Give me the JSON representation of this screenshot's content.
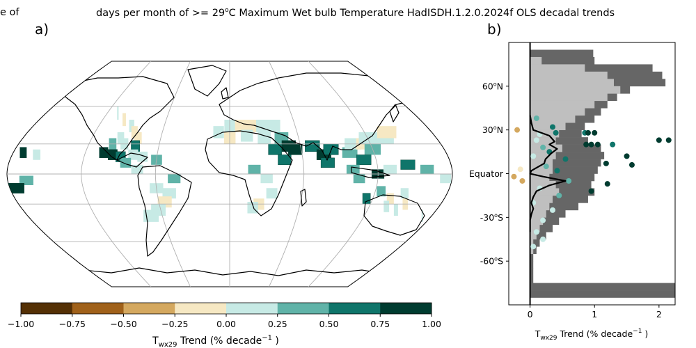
{
  "titles": {
    "left_fragment": "e of",
    "main_prefix": "days per month of >= 29",
    "main_degree": "o",
    "main_suffix": "C Maximum Wet bulb Temperature HadISDH.1.2.0.2024f OLS decadal trends",
    "panel_a": "a)",
    "panel_b": "b)"
  },
  "colorbar": {
    "label_main": "T",
    "label_sub": "wx29",
    "label_rest": " Trend (% decade",
    "label_sup": "−1",
    "label_end": " )",
    "ticks": [
      "−1.00",
      "−0.75",
      "−0.50",
      "−0.25",
      "0.00",
      "0.25",
      "0.50",
      "0.75",
      "1.00"
    ],
    "colors": [
      "#543005",
      "#a0611a",
      "#d4a85f",
      "#f6e8c3",
      "#c7eae5",
      "#60b3a8",
      "#0f756a",
      "#003c30"
    ]
  },
  "colors": {
    "hist_dark": "#666666",
    "hist_light": "#bfbfbf",
    "trend_line": "#000000"
  },
  "chart_data": [
    {
      "type": "heatmap",
      "name": "map",
      "projection": "Robinson",
      "gridlines": true,
      "colormap": "BrBG",
      "color_range": [
        -1.0,
        1.0
      ],
      "color_levels": [
        -1.0,
        -0.75,
        -0.5,
        -0.25,
        0.0,
        0.25,
        0.5,
        0.75,
        1.0
      ],
      "cells": [
        {
          "lon": -172,
          "lat": 22,
          "v": 0.9
        },
        {
          "lon": -160,
          "lat": 20,
          "v": 0.2
        },
        {
          "lon": -165,
          "lat": -7,
          "v": 0.3
        },
        {
          "lon": -110,
          "lat": 55,
          "v": 0.1
        },
        {
          "lon": -100,
          "lat": 50,
          "v": -0.1
        },
        {
          "lon": -90,
          "lat": 45,
          "v": 0.2
        },
        {
          "lon": -85,
          "lat": 40,
          "v": -0.2
        },
        {
          "lon": -95,
          "lat": 35,
          "v": 0.1
        },
        {
          "lon": -80,
          "lat": 35,
          "v": -0.1
        },
        {
          "lon": -100,
          "lat": 30,
          "v": 0.3
        },
        {
          "lon": -90,
          "lat": 30,
          "v": 0.2
        },
        {
          "lon": -80,
          "lat": 28,
          "v": 0.6
        },
        {
          "lon": -105,
          "lat": 22,
          "v": 0.8
        },
        {
          "lon": -97,
          "lat": 20,
          "v": 0.9
        },
        {
          "lon": -90,
          "lat": 18,
          "v": 0.5
        },
        {
          "lon": -80,
          "lat": 20,
          "v": 0.1
        },
        {
          "lon": -72,
          "lat": 18,
          "v": 0.2
        },
        {
          "lon": -85,
          "lat": 12,
          "v": 0.3
        },
        {
          "lon": -60,
          "lat": 15,
          "v": 0.4
        },
        {
          "lon": -75,
          "lat": 5,
          "v": 0.2
        },
        {
          "lon": -45,
          "lat": -5,
          "v": 0.3
        },
        {
          "lon": -60,
          "lat": -15,
          "v": 0.1
        },
        {
          "lon": -50,
          "lat": -20,
          "v": 0.2
        },
        {
          "lon": -55,
          "lat": -28,
          "v": -0.1
        },
        {
          "lon": -62,
          "lat": -35,
          "v": 0.2
        },
        {
          "lon": -70,
          "lat": -40,
          "v": 0.1
        },
        {
          "lon": -10,
          "lat": 40,
          "v": 0.1
        },
        {
          "lon": 0,
          "lat": 45,
          "v": 0.2
        },
        {
          "lon": 10,
          "lat": 45,
          "v": -0.1
        },
        {
          "lon": 20,
          "lat": 45,
          "v": -0.2
        },
        {
          "lon": 30,
          "lat": 45,
          "v": 0.1
        },
        {
          "lon": 40,
          "lat": 45,
          "v": 0.2
        },
        {
          "lon": 0,
          "lat": 35,
          "v": -0.1
        },
        {
          "lon": 15,
          "lat": 37,
          "v": 0.1
        },
        {
          "lon": 30,
          "lat": 35,
          "v": 0.2
        },
        {
          "lon": 45,
          "lat": 35,
          "v": 0.3
        },
        {
          "lon": 50,
          "lat": 28,
          "v": 0.8
        },
        {
          "lon": 55,
          "lat": 25,
          "v": 0.9
        },
        {
          "lon": 38,
          "lat": 25,
          "v": 0.5
        },
        {
          "lon": 45,
          "lat": 15,
          "v": 0.7
        },
        {
          "lon": 70,
          "lat": 28,
          "v": 0.6
        },
        {
          "lon": 78,
          "lat": 20,
          "v": 0.9
        },
        {
          "lon": 80,
          "lat": 12,
          "v": 0.7
        },
        {
          "lon": 85,
          "lat": 25,
          "v": 0.5
        },
        {
          "lon": 100,
          "lat": 22,
          "v": 0.3
        },
        {
          "lon": 105,
          "lat": 30,
          "v": 0.2
        },
        {
          "lon": 115,
          "lat": 30,
          "v": -0.1
        },
        {
          "lon": 120,
          "lat": 35,
          "v": 0.1
        },
        {
          "lon": 120,
          "lat": 25,
          "v": 0.4
        },
        {
          "lon": 110,
          "lat": 15,
          "v": 0.5
        },
        {
          "lon": 100,
          "lat": 5,
          "v": 0.3
        },
        {
          "lon": 105,
          "lat": -5,
          "v": 0.4
        },
        {
          "lon": 120,
          "lat": 0,
          "v": 0.9
        },
        {
          "lon": 130,
          "lat": 5,
          "v": 0.2
        },
        {
          "lon": 125,
          "lat": 35,
          "v": 0.2
        },
        {
          "lon": 135,
          "lat": 35,
          "v": 0.1
        },
        {
          "lon": 140,
          "lat": 40,
          "v": -0.1
        },
        {
          "lon": 145,
          "lat": 10,
          "v": 0.6
        },
        {
          "lon": 160,
          "lat": 5,
          "v": 0.3
        },
        {
          "lon": 175,
          "lat": -5,
          "v": 0.2
        },
        {
          "lon": -175,
          "lat": -15,
          "v": 0.9
        },
        {
          "lon": 20,
          "lat": 5,
          "v": 0.3
        },
        {
          "lon": 30,
          "lat": -5,
          "v": 0.2
        },
        {
          "lon": 35,
          "lat": -20,
          "v": 0.1
        },
        {
          "lon": 25,
          "lat": -30,
          "v": -0.1
        },
        {
          "lon": 20,
          "lat": -33,
          "v": 0.2
        },
        {
          "lon": 115,
          "lat": -25,
          "v": 0.5
        },
        {
          "lon": 125,
          "lat": -18,
          "v": 0.3
        },
        {
          "lon": 135,
          "lat": -25,
          "v": -0.2
        },
        {
          "lon": 145,
          "lat": -20,
          "v": 0.2
        },
        {
          "lon": 150,
          "lat": -30,
          "v": -0.1
        },
        {
          "lon": 145,
          "lat": -35,
          "v": 0.1
        },
        {
          "lon": 135,
          "lat": -32,
          "v": 0.1
        },
        {
          "lon": 172,
          "lat": -40,
          "v": 0.1
        }
      ]
    },
    {
      "type": "bar",
      "name": "zonal histogram",
      "orientation": "horizontal",
      "xlabel": "T",
      "xlabel_sub": "wx29",
      "xlabel_rest": " Trend (% decade",
      "xlabel_sup": "−1",
      "xlabel_end": " )",
      "xlim": [
        -0.33,
        2.25
      ],
      "ylim": [
        -90,
        90
      ],
      "xticks": [
        0,
        1,
        2
      ],
      "yticks": [
        {
          "value": 60,
          "label": "60",
          "sup": "o",
          "hem": "N"
        },
        {
          "value": 30,
          "label": "30",
          "sup": "o",
          "hem": "N"
        },
        {
          "value": 0,
          "label": "Equator",
          "sup": "",
          "hem": ""
        },
        {
          "value": -30,
          "label": "-30",
          "sup": "o",
          "hem": "S"
        },
        {
          "value": -60,
          "label": "-60",
          "sup": "o",
          "hem": "S"
        }
      ],
      "lat_bands": [
        82.5,
        77.5,
        72.5,
        67.5,
        62.5,
        57.5,
        52.5,
        47.5,
        42.5,
        37.5,
        32.5,
        27.5,
        22.5,
        17.5,
        12.5,
        7.5,
        2.5,
        -2.5,
        -7.5,
        -12.5,
        -17.5,
        -22.5,
        -27.5,
        -32.5,
        -37.5,
        -42.5,
        -47.5,
        -52.5,
        -57.5,
        -62.5,
        -67.5,
        -72.5,
        -77.5,
        -82.5
      ],
      "series": [
        {
          "name": "",
          "style": "dark",
          "values": [
            0.98,
            1.0,
            1.9,
            2.05,
            2.1,
            1.55,
            1.35,
            1.2,
            1.1,
            1.0,
            0.85,
            0.8,
            0.9,
            1.1,
            1.15,
            1.1,
            1.05,
            1.0,
            0.95,
            1.0,
            0.9,
            0.75,
            0.55,
            0.45,
            0.35,
            0.25,
            0.15,
            0.1,
            0.05,
            0.05,
            0.05,
            0.05,
            2.25,
            2.25
          ]
        },
        {
          "name": "",
          "style": "light",
          "values": [
            0.0,
            0.18,
            0.85,
            1.2,
            1.3,
            1.4,
            1.2,
            1.0,
            0.85,
            0.7,
            0.55,
            0.45,
            0.4,
            0.5,
            0.4,
            0.35,
            0.35,
            0.3,
            0.4,
            0.45,
            0.35,
            0.3,
            0.25,
            0.2,
            0.15,
            0.1,
            0.05,
            0.05,
            0.0,
            0.0,
            0.0,
            0.0,
            0.0,
            0.0
          ]
        }
      ],
      "trend_line": {
        "lat": [
          40,
          35,
          30,
          26,
          22,
          20,
          17,
          14,
          10,
          7,
          4,
          2,
          0,
          -2,
          -5,
          -8,
          -12,
          -16,
          -20,
          -24,
          -28,
          -32,
          -36,
          -40
        ],
        "x": [
          0.0,
          0.02,
          0.05,
          0.3,
          0.38,
          0.3,
          0.42,
          0.33,
          0.24,
          0.22,
          0.1,
          0.02,
          0.0,
          0.2,
          0.55,
          0.3,
          0.1,
          0.05,
          0.02,
          0.05,
          0.02,
          0.0,
          0.0,
          0.0
        ]
      },
      "scatter": [
        {
          "x": -0.2,
          "lat": 30,
          "v": -0.3
        },
        {
          "x": -0.15,
          "lat": 3,
          "v": -0.2
        },
        {
          "x": -0.12,
          "lat": -5,
          "v": -0.3
        },
        {
          "x": -0.25,
          "lat": -2,
          "v": -0.3
        },
        {
          "x": 0.1,
          "lat": 38,
          "v": 0.3
        },
        {
          "x": 0.15,
          "lat": 27,
          "v": 0.2
        },
        {
          "x": 0.1,
          "lat": 23,
          "v": 0.2
        },
        {
          "x": 0.2,
          "lat": 18,
          "v": 0.3
        },
        {
          "x": 0.05,
          "lat": 12,
          "v": 0.2
        },
        {
          "x": 0.25,
          "lat": 5,
          "v": 0.3
        },
        {
          "x": 0.15,
          "lat": -10,
          "v": 0.2
        },
        {
          "x": 0.05,
          "lat": -20,
          "v": 0.1
        },
        {
          "x": 0.35,
          "lat": 32,
          "v": 0.6
        },
        {
          "x": 0.4,
          "lat": 28,
          "v": 0.5
        },
        {
          "x": 0.3,
          "lat": 15,
          "v": 0.6
        },
        {
          "x": 0.42,
          "lat": 2,
          "v": 0.5
        },
        {
          "x": 0.55,
          "lat": 10,
          "v": 0.6
        },
        {
          "x": 0.85,
          "lat": 28,
          "v": 0.7
        },
        {
          "x": 0.95,
          "lat": 20,
          "v": 0.8
        },
        {
          "x": 0.9,
          "lat": 28,
          "v": 0.9
        },
        {
          "x": 1.0,
          "lat": 28,
          "v": 0.9
        },
        {
          "x": 1.05,
          "lat": 20,
          "v": 0.9
        },
        {
          "x": 0.87,
          "lat": 20,
          "v": 0.9
        },
        {
          "x": 1.28,
          "lat": 20,
          "v": 0.7
        },
        {
          "x": 1.18,
          "lat": 7,
          "v": 0.9
        },
        {
          "x": 1.5,
          "lat": 12,
          "v": 0.9
        },
        {
          "x": 1.58,
          "lat": 6,
          "v": 0.9
        },
        {
          "x": 1.2,
          "lat": -7,
          "v": 0.9
        },
        {
          "x": 0.95,
          "lat": -12,
          "v": 0.9
        },
        {
          "x": 2.0,
          "lat": 23,
          "v": 0.9
        },
        {
          "x": 2.15,
          "lat": 23,
          "v": 0.9
        },
        {
          "x": 0.6,
          "lat": -5,
          "v": 0.4
        },
        {
          "x": 0.45,
          "lat": -15,
          "v": 0.3
        },
        {
          "x": 0.35,
          "lat": -25,
          "v": 0.2
        },
        {
          "x": 0.2,
          "lat": -32,
          "v": 0.1
        },
        {
          "x": 0.1,
          "lat": -40,
          "v": 0.2
        },
        {
          "x": 0.05,
          "lat": -50,
          "v": 0.2
        },
        {
          "x": 0.2,
          "lat": -45,
          "v": 0.1
        }
      ]
    }
  ]
}
